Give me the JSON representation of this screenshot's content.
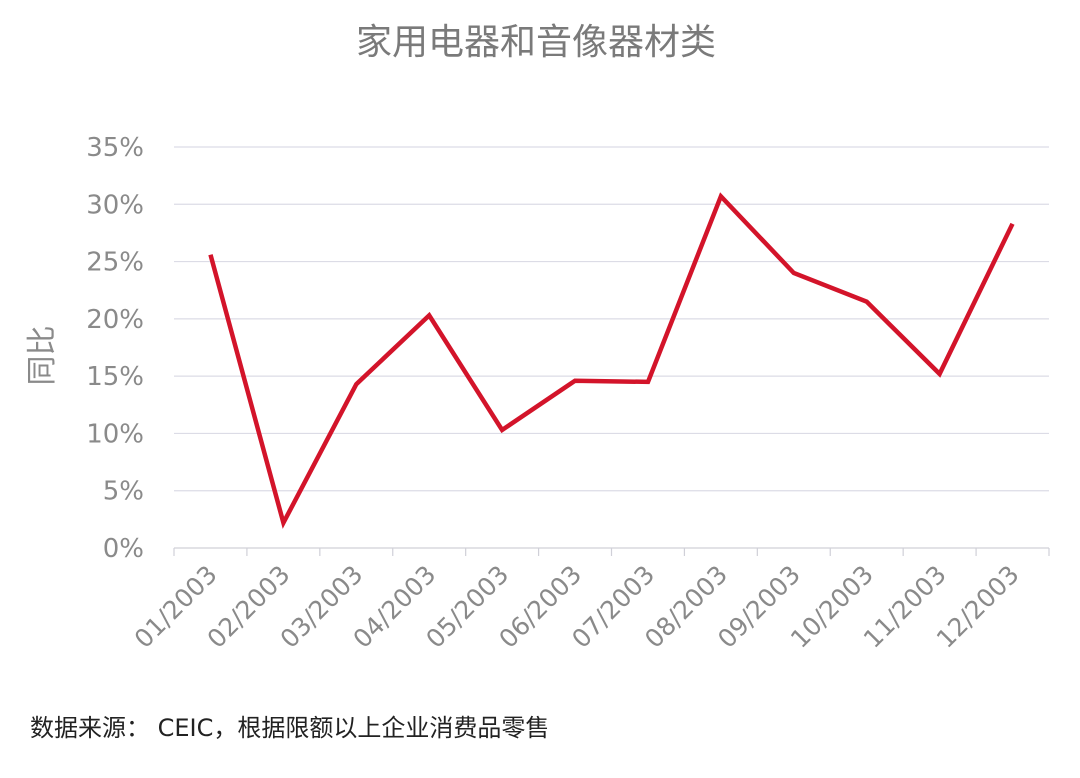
{
  "colors": {
    "series": "#d3142a"
  },
  "source_note": "数据来源： CEIC，根据限额以上企业消费品零售",
  "chart_data": {
    "type": "line",
    "title": "家用电器和音像器材类",
    "ylabel": "同比",
    "xlabel": "",
    "categories": [
      "01/2003",
      "02/2003",
      "03/2003",
      "04/2003",
      "05/2003",
      "06/2003",
      "07/2003",
      "08/2003",
      "09/2003",
      "10/2003",
      "11/2003",
      "12/2003"
    ],
    "yticks": [
      "0%",
      "5%",
      "10%",
      "15%",
      "20%",
      "25%",
      "30%",
      "35%"
    ],
    "ylim": [
      0,
      35
    ],
    "grid": true,
    "legend": "none",
    "series": [
      {
        "values": [
          25.6,
          2.2,
          14.3,
          20.3,
          10.3,
          14.6,
          14.5,
          30.7,
          24.0,
          21.5,
          15.2,
          28.3
        ]
      }
    ]
  }
}
